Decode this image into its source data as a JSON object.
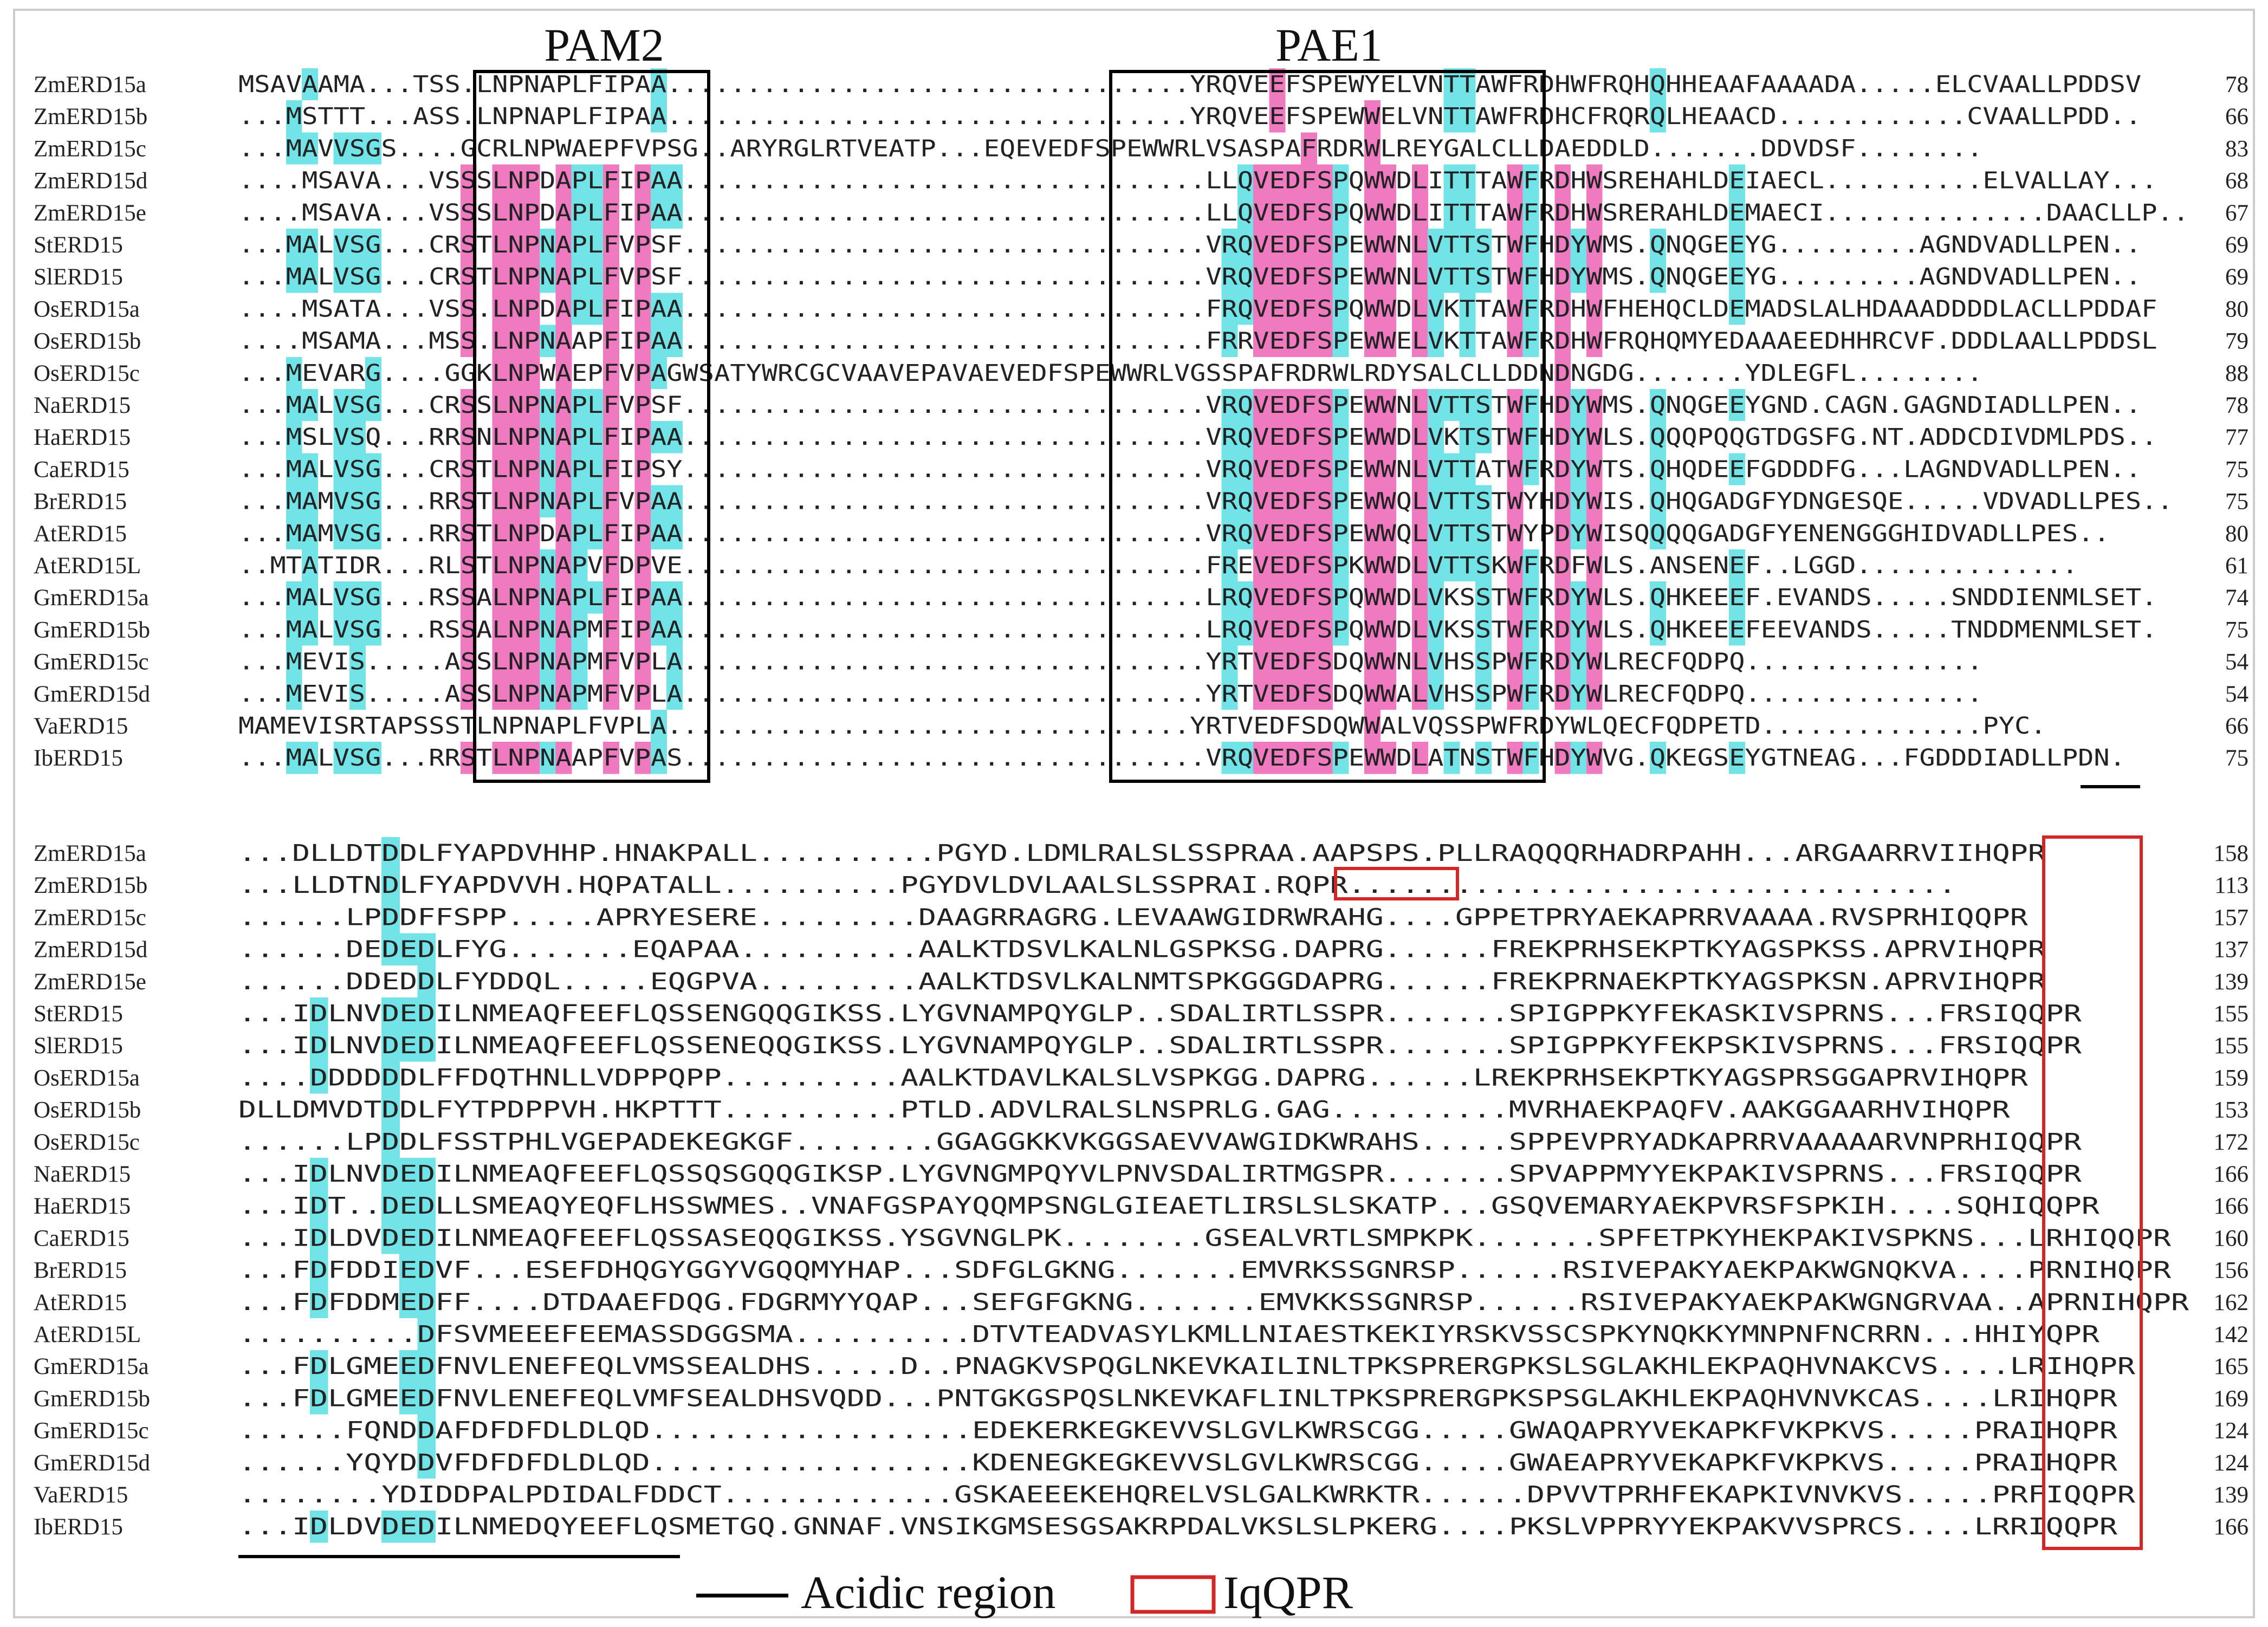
{
  "figure": {
    "colors": {
      "identical": "#0d0d3b",
      "high": "#ef7ac0",
      "low": "#72e3e6",
      "frame": "#000000",
      "iqqpr": "#d32626"
    },
    "box_labels": {
      "pam2": "PAM2",
      "pae1": "PAE1"
    },
    "legend": {
      "acidic": "Acidic region",
      "iqqpr": "IqQPR"
    }
  },
  "blocks": [
    {
      "rows": [
        {
          "name": "ZmERD15a",
          "seq": "MSAVAAMA...TSS.LNPNAPLFIPAA.................................YRQVEEFSPEWYELVNTTAWFRDHWFRQHQHHEAAFAAAADA.....ELCVAALLPDDSV",
          "num": "78"
        },
        {
          "name": "ZmERD15b",
          "seq": "...MSTTT...ASS.LNPNAPLFIPAA.................................YRQVEEFSPEWWELVNTTAWFRDHCFRQRQLHEAACD............CVAALLPDD..",
          "num": "66"
        },
        {
          "name": "ZmERD15c",
          "seq": "...MAVVSGS....GCRLNPWAEPFVPSG..ARYRGLRTVEATP...EQEVEDFSPEWWRLVSASPAFRDRWLREYGALCLLDAEDDLD.......DDVDSF........",
          "num": "83"
        },
        {
          "name": "ZmERD15d",
          "seq": "....MSAVA...VSSSLNPDAPLFIPAA.................................LLQVEDFSPQWWDLITTTAWFRDHWSREHAHLDEIAECL..........ELVALLAY...",
          "num": "68"
        },
        {
          "name": "ZmERD15e",
          "seq": "....MSAVA...VSSSLNPDAPLFIPAA.................................LLQVEDFSPQWWDLITTTAWFRDHWSRERAHLDEMAECI..............DAACLLP..",
          "num": "67"
        },
        {
          "name": "StERD15",
          "seq": "...MALVSG...CRSTLNPNAPLFVPSF.................................VRQVEDFSPEWWNLVTTSTWFHDYWMS.QNQGEEYG.........AGNDVADLLPEN..",
          "num": "69"
        },
        {
          "name": "SlERD15",
          "seq": "...MALVSG...CRSTLNPNAPLFVPSF.................................VRQVEDFSPEWWNLVTTSTWFHDYWMS.QNQGEEYG.........AGNDVADLLPEN..",
          "num": "69"
        },
        {
          "name": "OsERD15a",
          "seq": "....MSATA...VSS.LNPDAPLFIPAA.................................FRQVEDFSPQWWDLVKTTAWFRDHWFHEHQCLDEMADSLALHDAAADDDDLACLLPDDAF",
          "num": "80"
        },
        {
          "name": "OsERD15b",
          "seq": "....MSAMA...MSS.LNPNAAPFIPAA.................................FRRVEDFSPEWWELVKTTAWFRDHWFRQHQMYEDAAAEEDHHRCVF.DDDLAALLPDDSL",
          "num": "79"
        },
        {
          "name": "OsERD15c",
          "seq": "...MEVARG....GGKLNPWAEPFVPAGWSATYWRCGCVAAVEPAVAEVEDFSPEWWRLVGSSPAFRDRWLRDYSALCLLDDNDNGDG.......YDLEGFL........",
          "num": "88"
        },
        {
          "name": "NaERD15",
          "seq": "...MALVSG...CRSSLNPNAPLFVPSF.................................VRQVEDFSPEWWNLVTTSTWFHDYWMS.QNQGEEYGND.CAGN.GAGNDIADLLPEN..",
          "num": "78"
        },
        {
          "name": "HaERD15",
          "seq": "...MSLVSQ...RRSNLNPNAPLFIPAA.................................VRQVEDFSPEWWDLVKTSTWFHDYWLS.QQQPQQGTDGSFG.NT.ADDCDIVDMLPDS..",
          "num": "77"
        },
        {
          "name": "CaERD15",
          "seq": "...MALVSG...CRSTLNPNAPLFIPSY.................................VRQVEDFSPEWWNLVTTATWFRDYWTS.QHQDEEFGDDDFG...LAGNDVADLLPEN..",
          "num": "75"
        },
        {
          "name": "BrERD15",
          "seq": "...MAMVSG...RRSTLNPNAPLFVPAA.................................VRQVEDFSPEWWQLVTTSTWYHDYWIS.QHQGADGFYDNGESQE.....VDVADLLPES..",
          "num": "75"
        },
        {
          "name": "AtERD15",
          "seq": "...MAMVSG...RRSTLNPDAPLFIPAA.................................VRQVEDFSPEWWQLVTTSTWYPDYWISQQQQGADGFYENENGGGHIDVADLLPES..",
          "num": "80"
        },
        {
          "name": "AtERD15L",
          "seq": "..MTATIDR...RLSTLNPNAPVFDPVE.................................FREVEDFSPKWWDLVTTSKWFRDFWLS.ANSENEF..LGGD..............",
          "num": "61"
        },
        {
          "name": "GmERD15a",
          "seq": "...MALVSG...RSSALNPNAPLFIPAA.................................LRQVEDFSPQWWDLVKSSTWFRDYWLS.QHKEEEF.EVANDS.....SNDDIENMLSET.",
          "num": "74"
        },
        {
          "name": "GmERD15b",
          "seq": "...MALVSG...RSSALNPNAPMFIPAA.................................LRQVEDFSPQWWDLVKSSTWFRDYWLS.QHKEEEFEEVANDS.....TNDDMENMLSET.",
          "num": "75"
        },
        {
          "name": "GmERD15c",
          "seq": "...MEVIS.....ASSLNPNAPMFVPLA.................................YRTVEDFSDQWWNLVHSSPWFRDYWLRECFQDPQ...............",
          "num": "54"
        },
        {
          "name": "GmERD15d",
          "seq": "...MEVIS.....ASSLNPNAPMFVPLA.................................YRTVEDFSDQWWALVHSSPWFRDYWLRECFQDPQ...............",
          "num": "54"
        },
        {
          "name": "VaERD15",
          "seq": "MAMEVISRTAPSSSTLNPNAPLFVPLA.................................YRTVEDFSDQWWALVQSSPWFRDYWLQECFQDPETD..............PYC.",
          "num": "66"
        },
        {
          "name": "IbERD15",
          "seq": "...MALVSG...RRSTLNPNAAPFVPAS.................................VRQVEDFSPEWWDLATNSTWFHDYWVG.QKEGSEYGTNEAG...FGDDDIADLLPDN.",
          "num": "75"
        }
      ]
    },
    {
      "rows": [
        {
          "name": "ZmERD15a",
          "seq": "...DLLDTDDLFYAPDVHHP.HNAKPALL..........PGYD.LDMLRALSLSSPRAA.AAPSPS.PLLRAQQQRHADRPAHH...ARGAARRVIIHQPR",
          "num": "158"
        },
        {
          "name": "ZmERD15b",
          "seq": "...LLDTNDLFYAPDVVH.HQPATALL..........PGYDVLDVLAALSLSSPRAI.RQPR..................................",
          "num": "113"
        },
        {
          "name": "ZmERD15c",
          "seq": "......LPDDFFSPP.....APRYESERE.........DAAGRRAGRG.LEVAAWGIDRWRAHG....GPPETPRYAEKAPRRVAAAA.RVSPRHIQQPR",
          "num": "157"
        },
        {
          "name": "ZmERD15d",
          "seq": "......DEDEDLFYG.......EQAPAA..........AALKTDSVLKALNLGSPKSG.DAPRG......FREKPRHSEKPTKYAGSPKSS.APRVIHQPR",
          "num": "137"
        },
        {
          "name": "ZmERD15e",
          "seq": "......DDEDDLFYDDQL.....EQGPVA.........AALKTDSVLKALNMTSPKGGGDAPRG......FREKPRNAEKPTKYAGSPKSN.APRVIHQPR",
          "num": "139"
        },
        {
          "name": "StERD15",
          "seq": "...IDLNVDEDILNMEAQFEEFLQSSENGQQGIKSS.LYGVNAMPQYGLP..SDALIRTLSSPR.......SPIGPPKYFEKASKIVSPRNS...FRSIQQPR",
          "num": "155"
        },
        {
          "name": "SlERD15",
          "seq": "...IDLNVDEDILNMEAQFEEFLQSSENEQQGIKSS.LYGVNAMPQYGLP..SDALIRTLSSPR.......SPIGPPKYFEKPSKIVSPRNS...FRSIQQPR",
          "num": "155"
        },
        {
          "name": "OsERD15a",
          "seq": "....DDDDDDLFFDQTHNLLVDPPQPP..........AALKTDAVLKALSLVSPKGG.DAPRG......LREKPRHSEKPTKYAGSPRSGGAPRVIHQPR",
          "num": "159"
        },
        {
          "name": "OsERD15b",
          "seq": "DLLDMVDTDDLFYTPDPPVH.HKPTTT..........PTLD.ADVLRALSLNSPRLG.GAG..........MVRHAEKPAQFV.AAKGGAARHVIHQPR",
          "num": "153"
        },
        {
          "name": "OsERD15c",
          "seq": "......LPDDLFSSTPHLVGEPADEKEGKGF........GGAGGKKVKGGSAEVVAWGIDKWRAHS.....SPPEVPRYADKAPRRVAAAAARVNPRHIQQPR",
          "num": "172"
        },
        {
          "name": "NaERD15",
          "seq": "...IDLNVDEDILNMEAQFEEFLQSSQSGQQGIKSP.LYGVNGMPQYVLPNVSDALIRTMGSPR.......SPVAPPMYYEKPAKIVSPRNS...FRSIQQPR",
          "num": "166"
        },
        {
          "name": "HaERD15",
          "seq": "...IDT..DEDLLSMEAQYEQFLHSSWMES..VNAFGSPAYQQMPSNGLGIEAETLIRSLSLSKATP...GSQVEMARYAEKPVRSFSPKIH....SQHIQQPR",
          "num": "166"
        },
        {
          "name": "CaERD15",
          "seq": "...IDLDVDEDILNMEAQFEEFLQSSASEQQGIKSS.YSGVNGLPK........GSEALVRTLSMPKPK.......SPFETPKYHEKPAKIVSPKNS...LRHIQQPR",
          "num": "160"
        },
        {
          "name": "BrERD15",
          "seq": "...FDFDDIEDVF...ESEFDHQGYGGYVGQQMYHAP...SDFGLGKNG.......EMVRKSSGNRSP......RSIVEPAKYAEKPAKWGNQKVA....PRNIHQPR",
          "num": "156"
        },
        {
          "name": "AtERD15",
          "seq": "...FDFDDMEDFF....DTDAAEFDQG.FDGRMYYQAP...SEFGFGKNG.......EMVKKSSGNRSP......RSIVEPAKYAEKPAKWGNGRVAA..APRNIHQPR",
          "num": "162"
        },
        {
          "name": "AtERD15L",
          "seq": "..........DFSVMEEEFEEMASSDGGSMA..........DTVTEADVASYLKMLLNIAESTKEKIYRSKVSSCSPKYNQKKYMNPNFNCRRN...HHIYQPR",
          "num": "142"
        },
        {
          "name": "GmERD15a",
          "seq": "...FDLGMEEDFNVLENEFEQLVMSSEALDHS.....D..PNAGKVSPQGLNKEVKAILINLTPKSPRERGPKSLSGLAKHLEKPAQHVNAKCVS....LRIHQPR",
          "num": "165"
        },
        {
          "name": "GmERD15b",
          "seq": "...FDLGMEEDFNVLENEFEQLVMFSEALDHSVQDD...PNTGKGSPQSLNKEVKAFLINLTPKSPRERGPKSPSGLAKHLEKPAQHVNVKCAS....LRIHQPR",
          "num": "169"
        },
        {
          "name": "GmERD15c",
          "seq": "......FQNDDAFDFDFDLDLQD..................EDEKERKEGKEVVSLGVLKWRSCGG.....GWAQAPRYVEKAPKFVKPKVS.....PRAIHQPR",
          "num": "124"
        },
        {
          "name": "GmERD15d",
          "seq": "......YQYDDVFDFDFDLDLQD..................KDENEGKEGKEVVSLGVLKWRSCGG.....GWAEAPRYVEKAPKFVKPKVS.....PRAIHQPR",
          "num": "124"
        },
        {
          "name": "VaERD15",
          "seq": "........YDIDDPALPDIDALFDDCT.............GSKAEEEKEHQRELVSLGALKWRKTR......DPVVTPRHFEKAPKIVNVKVS.....PRFIQQPR",
          "num": "139"
        },
        {
          "name": "IbERD15",
          "seq": "...IDLDVDEDILNMEDQYEEFLQSMETGQ.GNNAF.VNSIKGMSESGSAKRPDALVKSLSLPKERG....PKSLVPPRYYEKPAKVVSPRCS....LRRIQQPR",
          "num": "166"
        }
      ]
    }
  ]
}
